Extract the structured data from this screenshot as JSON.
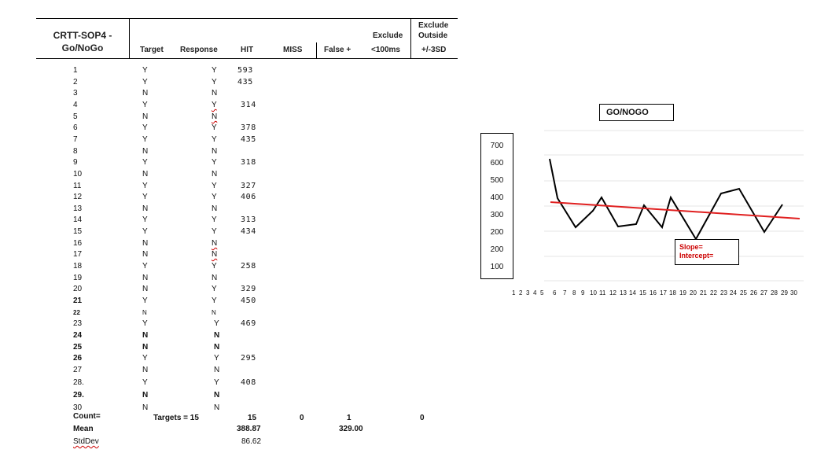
{
  "header": {
    "title_line1": "CRTT-SOP4 -",
    "title_line2": "Go/NoGo",
    "col_target": "Target",
    "col_response": "Response",
    "col_hit": "HIT",
    "col_miss": "MISS",
    "col_false": "False +",
    "col_excl1_line1": "Exclude",
    "col_excl1_line2": "<100ms",
    "col_excl2_line1": "Exclude",
    "col_excl2_line2": "Outside",
    "col_excl2_line3": "+/-3SD"
  },
  "trials": [
    {
      "n": "1",
      "t": "Y",
      "r": "Y",
      "hit": "593"
    },
    {
      "n": "2",
      "t": "Y",
      "r": "Y",
      "hit": "435"
    },
    {
      "n": "3",
      "t": "N",
      "r": "N",
      "hit": ""
    },
    {
      "n": "4",
      "t": "Y",
      "r": "Y",
      "hit": "314"
    },
    {
      "n": "5",
      "t": "N",
      "r": "N",
      "hit": ""
    },
    {
      "n": "6",
      "t": "Y",
      "r": "Y",
      "hit": "378"
    },
    {
      "n": "7",
      "t": "Y",
      "r": "Y",
      "hit": "435"
    },
    {
      "n": "8",
      "t": "N",
      "r": "N",
      "hit": ""
    },
    {
      "n": "9",
      "t": "Y",
      "r": "Y",
      "hit": "318"
    },
    {
      "n": "10",
      "t": "N",
      "r": "N",
      "hit": ""
    },
    {
      "n": "11",
      "t": "Y",
      "r": "Y",
      "hit": "327"
    },
    {
      "n": "12",
      "t": "Y",
      "r": "Y",
      "hit": "406"
    },
    {
      "n": "13",
      "t": "N",
      "r": "N",
      "hit": ""
    },
    {
      "n": "14",
      "t": "Y",
      "r": "Y",
      "hit": "313"
    },
    {
      "n": "15",
      "t": "Y",
      "r": "Y",
      "hit": "434"
    },
    {
      "n": "16",
      "t": "N",
      "r": "N",
      "hit": ""
    },
    {
      "n": "17",
      "t": "N",
      "r": "N",
      "hit": ""
    },
    {
      "n": "18",
      "t": "Y",
      "r": "Y",
      "hit": "258"
    },
    {
      "n": "19",
      "t": "N",
      "r": "N",
      "hit": ""
    },
    {
      "n": "20",
      "t": "N",
      "r": "Y",
      "hit": "329"
    },
    {
      "n": "21",
      "t": "Y",
      "r": "Y",
      "hit": "450"
    },
    {
      "n": "22",
      "t": "N",
      "r": "N",
      "hit": ""
    },
    {
      "n": "23",
      "t": "Y",
      "r": "Y",
      "hit": "469"
    },
    {
      "n": "24",
      "t": "N",
      "r": "N",
      "hit": ""
    },
    {
      "n": "25",
      "t": "N",
      "r": "N",
      "hit": ""
    },
    {
      "n": "26",
      "t": "Y",
      "r": "Y",
      "hit": "295"
    },
    {
      "n": "27",
      "t": "N",
      "r": "N",
      "hit": ""
    },
    {
      "n": "28.",
      "t": "Y",
      "r": "Y",
      "hit": "408"
    },
    {
      "n": "29.",
      "t": "N",
      "r": "N",
      "hit": ""
    },
    {
      "n": "30",
      "t": "N",
      "r": "N",
      "hit": ""
    }
  ],
  "summary": {
    "count_label": "Count=",
    "targets": "Targets = 15",
    "hit_count": "15",
    "miss_count": "0",
    "false_count": "1",
    "excl_count": "0",
    "mean_label": "Mean",
    "mean_hit": "388.87",
    "mean_false": "329.00",
    "sd_label": "StdDev",
    "sd_hit": "86.62"
  },
  "chart": {
    "title": "GO/NOGO",
    "y_labels": [
      "700",
      "600",
      "500",
      "400",
      "300",
      "200",
      "200",
      "100"
    ],
    "x_labels": [
      "1",
      "2",
      "3",
      "4",
      "5",
      "6",
      "7",
      "8",
      "9",
      "10",
      "11",
      "12",
      "13",
      "14",
      "15",
      "16",
      "17",
      "18",
      "19",
      "20",
      "21",
      "22",
      "23",
      "24",
      "25",
      "26",
      "27",
      "28",
      "29",
      "30"
    ],
    "slope_label": "Slope=",
    "intercept_label": "Intercept=",
    "line_color": "#000000",
    "trend_color": "#e02020"
  }
}
